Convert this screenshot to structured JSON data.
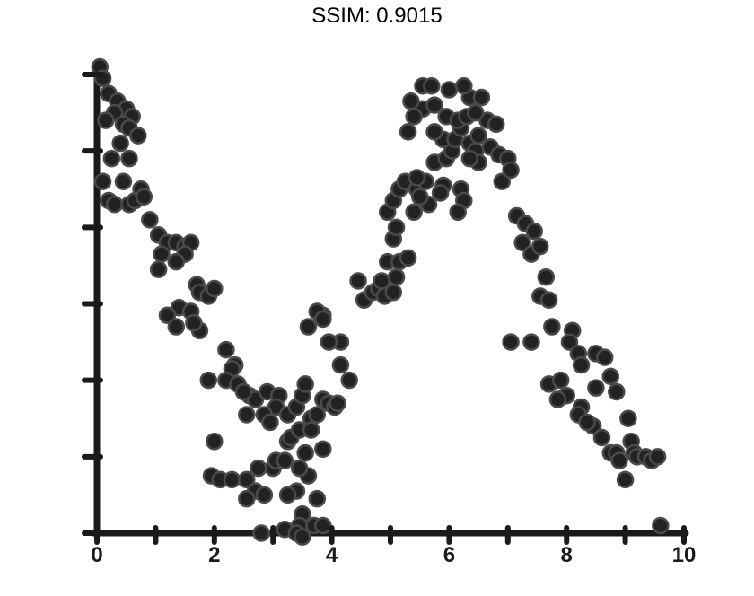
{
  "chart_data": {
    "type": "scatter",
    "title": "SSIM: 0.9015",
    "xlabel": "",
    "ylabel": "",
    "xlim": [
      0,
      10
    ],
    "ylim": [
      0,
      6
    ],
    "grid": false,
    "legend": "none",
    "x_ticks": [
      0,
      1,
      2,
      3,
      4,
      5,
      6,
      7,
      8,
      9,
      10
    ],
    "y_ticks": [
      0,
      1,
      2,
      3,
      4,
      5,
      6
    ],
    "x_tick_labels": [
      "0",
      "",
      "2",
      "",
      "4",
      "",
      "6",
      "",
      "8",
      "",
      "10"
    ],
    "y_tick_labels": [
      "",
      "",
      "",
      "",
      "",
      "",
      ""
    ],
    "colors": {
      "marker": "#222222",
      "marker_edge": "#4a4a4a",
      "axis": "#1a1a1a",
      "background": "#ffffff"
    },
    "series": [
      {
        "values": [
          [
            0.05,
            6.1
          ],
          [
            0.1,
            5.95
          ],
          [
            0.2,
            5.75
          ],
          [
            0.35,
            5.65
          ],
          [
            0.5,
            5.55
          ],
          [
            0.6,
            5.45
          ],
          [
            0.3,
            5.5
          ],
          [
            0.15,
            5.4
          ],
          [
            0.45,
            5.35
          ],
          [
            0.55,
            5.3
          ],
          [
            0.7,
            5.2
          ],
          [
            0.4,
            5.1
          ],
          [
            0.25,
            4.9
          ],
          [
            0.55,
            4.9
          ],
          [
            0.45,
            4.6
          ],
          [
            0.1,
            4.6
          ],
          [
            0.2,
            4.35
          ],
          [
            0.3,
            4.3
          ],
          [
            0.55,
            4.3
          ],
          [
            0.65,
            4.35
          ],
          [
            0.75,
            4.5
          ],
          [
            0.8,
            4.4
          ],
          [
            0.9,
            4.1
          ],
          [
            1.05,
            3.9
          ],
          [
            1.2,
            3.8
          ],
          [
            1.35,
            3.8
          ],
          [
            1.5,
            3.75
          ],
          [
            1.6,
            3.8
          ],
          [
            1.1,
            3.65
          ],
          [
            1.5,
            3.65
          ],
          [
            1.35,
            3.55
          ],
          [
            1.05,
            3.45
          ],
          [
            1.7,
            3.25
          ],
          [
            1.75,
            3.15
          ],
          [
            1.9,
            3.1
          ],
          [
            2.0,
            3.2
          ],
          [
            1.4,
            2.95
          ],
          [
            1.6,
            2.9
          ],
          [
            1.2,
            2.85
          ],
          [
            1.75,
            2.65
          ],
          [
            1.65,
            2.75
          ],
          [
            1.35,
            2.7
          ],
          [
            2.2,
            2.4
          ],
          [
            2.35,
            2.2
          ],
          [
            2.3,
            2.15
          ],
          [
            2.2,
            2.0
          ],
          [
            1.9,
            2.0
          ],
          [
            2.4,
            1.95
          ],
          [
            2.6,
            1.8
          ],
          [
            2.7,
            1.75
          ],
          [
            2.5,
            1.85
          ],
          [
            2.9,
            1.85
          ],
          [
            3.1,
            1.8
          ],
          [
            3.05,
            1.65
          ],
          [
            2.55,
            1.55
          ],
          [
            2.85,
            1.55
          ],
          [
            2.95,
            1.45
          ],
          [
            3.25,
            1.55
          ],
          [
            3.4,
            1.65
          ],
          [
            3.5,
            1.8
          ],
          [
            3.55,
            1.95
          ],
          [
            3.25,
            1.2
          ],
          [
            3.3,
            1.25
          ],
          [
            3.45,
            1.35
          ],
          [
            3.65,
            1.5
          ],
          [
            3.65,
            1.35
          ],
          [
            3.75,
            1.55
          ],
          [
            3.85,
            1.75
          ],
          [
            3.95,
            1.7
          ],
          [
            4.05,
            1.65
          ],
          [
            4.1,
            1.7
          ],
          [
            2.0,
            1.2
          ],
          [
            1.95,
            0.75
          ],
          [
            2.1,
            0.7
          ],
          [
            2.3,
            0.7
          ],
          [
            2.55,
            0.7
          ],
          [
            2.7,
            0.55
          ],
          [
            3.0,
            0.85
          ],
          [
            3.05,
            0.95
          ],
          [
            3.2,
            0.95
          ],
          [
            3.55,
            1.05
          ],
          [
            3.85,
            1.1
          ],
          [
            2.75,
            0.85
          ],
          [
            3.6,
            0.75
          ],
          [
            3.4,
            0.55
          ],
          [
            3.25,
            0.5
          ],
          [
            2.55,
            0.45
          ],
          [
            2.85,
            0.5
          ],
          [
            3.45,
            0.85
          ],
          [
            3.5,
            0.25
          ],
          [
            3.75,
            0.45
          ],
          [
            3.45,
            0.1
          ],
          [
            3.7,
            0.1
          ],
          [
            3.85,
            0.1
          ],
          [
            3.2,
            0.05
          ],
          [
            2.8,
            0.0
          ],
          [
            3.4,
            0.0
          ],
          [
            3.5,
            -0.05
          ],
          [
            4.15,
            2.2
          ],
          [
            4.3,
            2.0
          ],
          [
            4.15,
            2.5
          ],
          [
            3.95,
            2.5
          ],
          [
            3.85,
            2.85
          ],
          [
            3.75,
            2.9
          ],
          [
            3.6,
            2.7
          ],
          [
            3.85,
            2.8
          ],
          [
            4.45,
            3.3
          ],
          [
            4.55,
            3.05
          ],
          [
            4.7,
            3.15
          ],
          [
            4.8,
            3.2
          ],
          [
            4.9,
            3.1
          ],
          [
            5.05,
            3.15
          ],
          [
            4.85,
            3.3
          ],
          [
            5.1,
            3.35
          ],
          [
            4.95,
            3.55
          ],
          [
            5.15,
            3.55
          ],
          [
            5.3,
            3.6
          ],
          [
            5.05,
            3.85
          ],
          [
            5.1,
            4.0
          ],
          [
            4.95,
            4.2
          ],
          [
            5.05,
            4.35
          ],
          [
            5.15,
            4.5
          ],
          [
            5.25,
            4.6
          ],
          [
            5.45,
            4.5
          ],
          [
            5.6,
            4.6
          ],
          [
            5.45,
            4.65
          ],
          [
            5.75,
            4.85
          ],
          [
            5.9,
            4.55
          ],
          [
            5.65,
            4.3
          ],
          [
            5.5,
            4.4
          ],
          [
            5.4,
            4.2
          ],
          [
            5.85,
            4.45
          ],
          [
            5.95,
            4.9
          ],
          [
            6.05,
            5.0
          ],
          [
            5.9,
            5.15
          ],
          [
            6.1,
            5.15
          ],
          [
            6.2,
            5.3
          ],
          [
            6.35,
            5.1
          ],
          [
            6.45,
            5.0
          ],
          [
            6.5,
            5.2
          ],
          [
            6.65,
            5.4
          ],
          [
            6.8,
            5.35
          ],
          [
            6.7,
            5.05
          ],
          [
            6.85,
            4.95
          ],
          [
            7.0,
            4.9
          ],
          [
            6.9,
            4.6
          ],
          [
            7.05,
            4.75
          ],
          [
            6.5,
            4.85
          ],
          [
            6.35,
            4.9
          ],
          [
            5.75,
            5.25
          ],
          [
            5.3,
            5.25
          ],
          [
            5.55,
            5.55
          ],
          [
            5.75,
            5.6
          ],
          [
            5.95,
            5.45
          ],
          [
            6.15,
            5.4
          ],
          [
            6.3,
            5.45
          ],
          [
            6.45,
            5.5
          ],
          [
            6.35,
            5.7
          ],
          [
            6.55,
            5.7
          ],
          [
            6.25,
            5.85
          ],
          [
            6.0,
            5.8
          ],
          [
            5.55,
            5.85
          ],
          [
            5.35,
            5.65
          ],
          [
            5.7,
            5.85
          ],
          [
            5.4,
            5.45
          ],
          [
            6.2,
            4.5
          ],
          [
            6.25,
            4.35
          ],
          [
            6.15,
            4.2
          ],
          [
            7.15,
            4.15
          ],
          [
            7.3,
            4.05
          ],
          [
            7.45,
            3.95
          ],
          [
            7.25,
            3.8
          ],
          [
            7.4,
            3.65
          ],
          [
            7.55,
            3.75
          ],
          [
            7.65,
            3.35
          ],
          [
            7.55,
            3.1
          ],
          [
            7.7,
            3.05
          ],
          [
            7.05,
            2.5
          ],
          [
            7.4,
            2.5
          ],
          [
            7.75,
            2.7
          ],
          [
            8.1,
            2.65
          ],
          [
            8.05,
            2.5
          ],
          [
            8.2,
            2.35
          ],
          [
            8.25,
            2.2
          ],
          [
            8.5,
            2.35
          ],
          [
            8.65,
            2.3
          ],
          [
            8.75,
            2.05
          ],
          [
            8.5,
            1.9
          ],
          [
            8.85,
            1.85
          ],
          [
            7.7,
            1.95
          ],
          [
            7.9,
            2.0
          ],
          [
            8.0,
            1.8
          ],
          [
            8.25,
            1.65
          ],
          [
            8.45,
            1.4
          ],
          [
            8.6,
            1.25
          ],
          [
            7.85,
            1.75
          ],
          [
            9.05,
            1.5
          ],
          [
            9.1,
            1.2
          ],
          [
            9.15,
            1.05
          ],
          [
            9.2,
            1.0
          ],
          [
            9.35,
            1.0
          ],
          [
            9.45,
            0.95
          ],
          [
            9.55,
            1.0
          ],
          [
            8.75,
            1.05
          ],
          [
            8.85,
            1.05
          ],
          [
            8.9,
            0.95
          ],
          [
            9.0,
            0.7
          ],
          [
            9.6,
            0.1
          ],
          [
            8.2,
            1.55
          ],
          [
            8.35,
            1.45
          ]
        ]
      }
    ]
  }
}
